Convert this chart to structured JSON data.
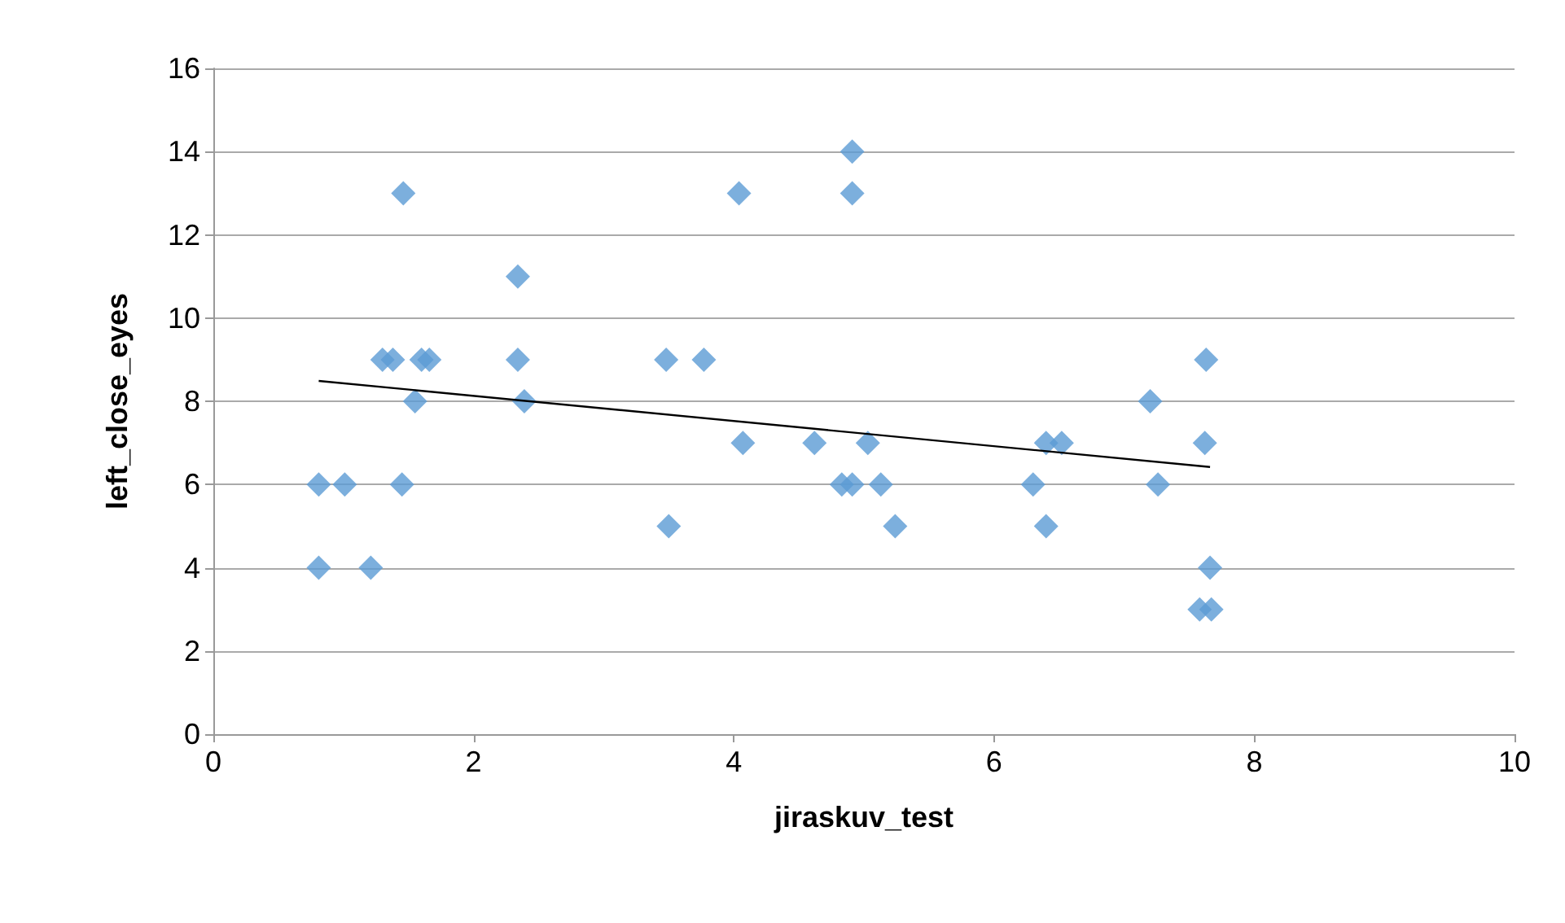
{
  "chart_data": {
    "type": "scatter",
    "xlabel": "jiraskuv_test",
    "ylabel": "left_close_eyes",
    "xlim": [
      0,
      10
    ],
    "xticks": [
      0,
      2,
      4,
      6,
      8,
      10
    ],
    "ylim": [
      0,
      16
    ],
    "yticks": [
      0,
      2,
      4,
      6,
      8,
      10,
      12,
      14,
      16
    ],
    "grid": "y",
    "series": [
      {
        "marker": "diamond",
        "color": "#5b9bd5",
        "x": [
          0.81,
          0.81,
          1.01,
          1.21,
          1.3,
          1.38,
          1.46,
          1.45,
          1.55,
          1.6,
          1.66,
          2.34,
          2.34,
          2.39,
          3.48,
          3.5,
          3.77,
          4.04,
          4.07,
          4.62,
          4.91,
          4.91,
          4.83,
          4.91,
          5.03,
          5.13,
          5.24,
          6.3,
          6.4,
          6.52,
          6.4,
          7.2,
          7.26,
          7.63,
          7.62,
          7.66,
          7.58,
          7.67
        ],
        "values": [
          4,
          6,
          6,
          4,
          9,
          9,
          13,
          6,
          8,
          9,
          9,
          11,
          9,
          8,
          9,
          5,
          9,
          13,
          7,
          7,
          14,
          13,
          6,
          6,
          7,
          6,
          5,
          6,
          7,
          7,
          5,
          8,
          6,
          9,
          7,
          4,
          3,
          3
        ]
      },
      {
        "type": "line",
        "color": "#000000",
        "x": [
          0.81,
          7.66
        ],
        "values": [
          8.49,
          6.42
        ]
      }
    ]
  }
}
